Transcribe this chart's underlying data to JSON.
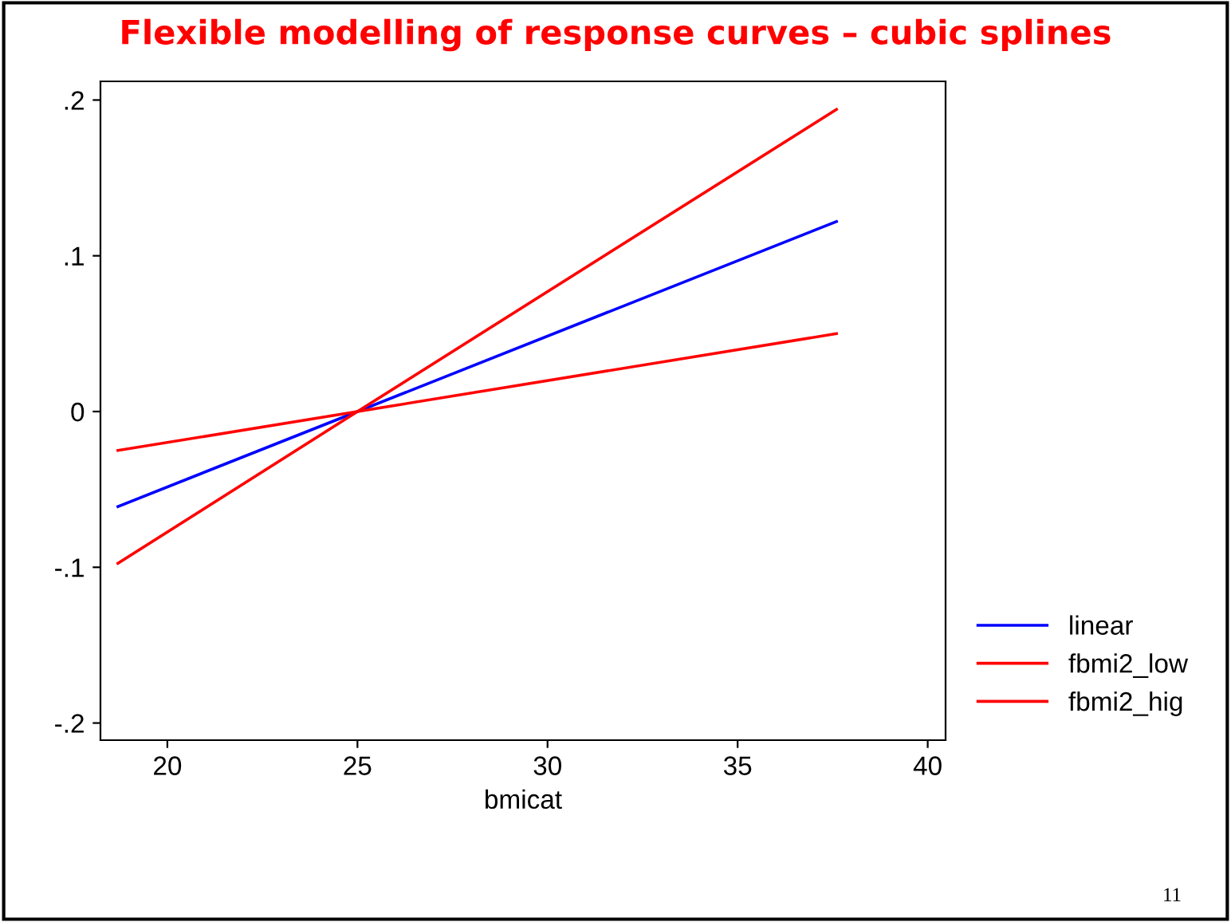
{
  "chart_data": {
    "type": "line",
    "title": "Flexible modelling of response curves – cubic splines",
    "xlabel": "bmicat",
    "x": [
      18.7,
      25,
      37.6
    ],
    "series": [
      {
        "name": "linear",
        "color": "#0000ff",
        "values": [
          -0.061,
          0,
          0.122
        ]
      },
      {
        "name": "fbmi2_low",
        "color": "#ff0000",
        "values": [
          -0.025,
          0,
          0.05
        ]
      },
      {
        "name": "fbmi2_hig",
        "color": "#ff0000",
        "values": [
          -0.0975,
          0,
          0.194
        ]
      }
    ],
    "xlim": [
      18.24,
      40.47
    ],
    "xticks": [
      20,
      25,
      30,
      35,
      40
    ],
    "ylim": [
      -0.211,
      0.212
    ],
    "yticks": [
      {
        "value": -0.2,
        "label": "-.2"
      },
      {
        "value": -0.1,
        "label": "-.1"
      },
      {
        "value": 0,
        "label": "0"
      },
      {
        "value": 0.1,
        "label": ".1"
      },
      {
        "value": 0.2,
        "label": ".2"
      }
    ],
    "annotations": [
      "11"
    ],
    "legend": "bottom right",
    "grid": false,
    "marker": "none",
    "line_style": "solid"
  }
}
